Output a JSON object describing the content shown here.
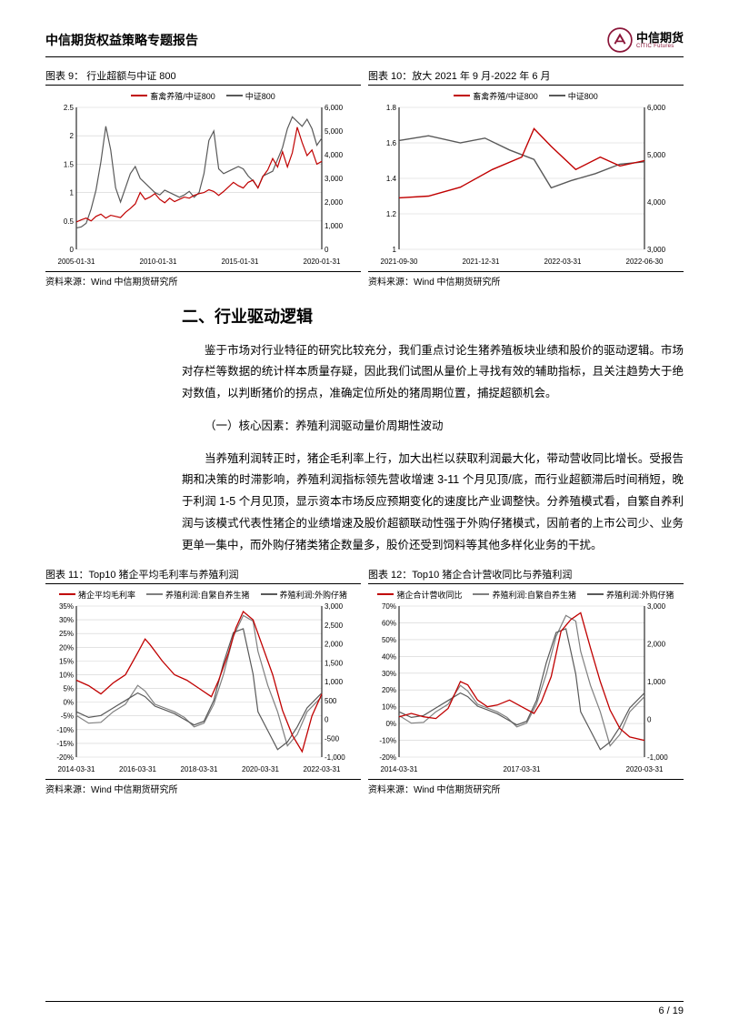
{
  "header": {
    "title": "中信期货权益策略专题报告",
    "logo_cn": "中信期货",
    "logo_en": "CITIC Futures",
    "logo_mark_color": "#8a1538"
  },
  "chart9": {
    "title": "图表 9：  行业超额与中证 800",
    "source": "资料来源：Wind   中信期货研究所",
    "legend": [
      {
        "label": "畜禽养殖/中证800",
        "color": "#c00000"
      },
      {
        "label": "中证800",
        "color": "#595959"
      }
    ],
    "type": "line",
    "background_color": "#ffffff",
    "grid_color": "#d0d0d0",
    "x_labels": [
      "2005-01-31",
      "2010-01-31",
      "2015-01-31",
      "2020-01-31"
    ],
    "y_left": {
      "min": 0,
      "max": 2.5,
      "step": 0.5
    },
    "y_right": {
      "min": 0,
      "max": 6000,
      "step": 1000
    },
    "series_left": {
      "color": "#c00000",
      "line_width": 1.2,
      "points": [
        [
          0,
          0.48
        ],
        [
          2,
          0.52
        ],
        [
          4,
          0.55
        ],
        [
          6,
          0.5
        ],
        [
          8,
          0.58
        ],
        [
          10,
          0.62
        ],
        [
          12,
          0.55
        ],
        [
          14,
          0.6
        ],
        [
          16,
          0.58
        ],
        [
          18,
          0.56
        ],
        [
          20,
          0.65
        ],
        [
          22,
          0.72
        ],
        [
          24,
          0.8
        ],
        [
          26,
          1.0
        ],
        [
          28,
          0.88
        ],
        [
          30,
          0.92
        ],
        [
          32,
          0.98
        ],
        [
          34,
          0.88
        ],
        [
          36,
          0.82
        ],
        [
          38,
          0.9
        ],
        [
          40,
          0.84
        ],
        [
          42,
          0.88
        ],
        [
          44,
          0.92
        ],
        [
          46,
          0.9
        ],
        [
          48,
          0.95
        ],
        [
          50,
          0.98
        ],
        [
          52,
          1.0
        ],
        [
          54,
          1.05
        ],
        [
          56,
          1.02
        ],
        [
          58,
          0.95
        ],
        [
          60,
          1.02
        ],
        [
          62,
          1.1
        ],
        [
          64,
          1.18
        ],
        [
          66,
          1.12
        ],
        [
          68,
          1.08
        ],
        [
          70,
          1.18
        ],
        [
          72,
          1.22
        ],
        [
          74,
          1.08
        ],
        [
          76,
          1.28
        ],
        [
          78,
          1.4
        ],
        [
          80,
          1.6
        ],
        [
          82,
          1.45
        ],
        [
          84,
          1.72
        ],
        [
          86,
          1.45
        ],
        [
          88,
          1.7
        ],
        [
          90,
          2.15
        ],
        [
          92,
          1.88
        ],
        [
          94,
          1.65
        ],
        [
          96,
          1.75
        ],
        [
          98,
          1.5
        ],
        [
          100,
          1.55
        ]
      ]
    },
    "series_right": {
      "color": "#595959",
      "line_width": 1.2,
      "points": [
        [
          0,
          900
        ],
        [
          2,
          950
        ],
        [
          4,
          1100
        ],
        [
          6,
          1700
        ],
        [
          8,
          2500
        ],
        [
          10,
          3700
        ],
        [
          12,
          5200
        ],
        [
          14,
          4200
        ],
        [
          16,
          2600
        ],
        [
          18,
          2000
        ],
        [
          20,
          2600
        ],
        [
          22,
          3200
        ],
        [
          24,
          3500
        ],
        [
          26,
          3000
        ],
        [
          28,
          2800
        ],
        [
          30,
          2600
        ],
        [
          32,
          2400
        ],
        [
          34,
          2300
        ],
        [
          36,
          2500
        ],
        [
          38,
          2400
        ],
        [
          40,
          2300
        ],
        [
          42,
          2200
        ],
        [
          44,
          2300
        ],
        [
          46,
          2450
        ],
        [
          48,
          2200
        ],
        [
          50,
          2400
        ],
        [
          52,
          3200
        ],
        [
          54,
          4600
        ],
        [
          56,
          5000
        ],
        [
          58,
          3400
        ],
        [
          60,
          3200
        ],
        [
          62,
          3300
        ],
        [
          64,
          3400
        ],
        [
          66,
          3500
        ],
        [
          68,
          3400
        ],
        [
          70,
          3100
        ],
        [
          72,
          2900
        ],
        [
          74,
          2600
        ],
        [
          76,
          3100
        ],
        [
          78,
          3200
        ],
        [
          80,
          3300
        ],
        [
          82,
          3800
        ],
        [
          84,
          4300
        ],
        [
          86,
          5100
        ],
        [
          88,
          5600
        ],
        [
          90,
          5400
        ],
        [
          92,
          5200
        ],
        [
          94,
          5500
        ],
        [
          96,
          5100
        ],
        [
          98,
          4400
        ],
        [
          100,
          4700
        ]
      ]
    }
  },
  "chart10": {
    "title": "图表 10：放大 2021 年 9 月-2022 年 6 月",
    "source": "资料来源：Wind   中信期货研究所",
    "legend": [
      {
        "label": "畜禽养殖/中证800",
        "color": "#c00000"
      },
      {
        "label": "中证800",
        "color": "#595959"
      }
    ],
    "type": "line",
    "background_color": "#ffffff",
    "grid_color": "#d0d0d0",
    "x_labels": [
      "2021-09-30",
      "2021-12-31",
      "2022-03-31",
      "2022-06-30"
    ],
    "y_left": {
      "min": 1.0,
      "max": 1.8,
      "step": 0.2
    },
    "y_right": {
      "min": 3000,
      "max": 6000,
      "step": 1000
    },
    "series_left": {
      "color": "#c00000",
      "line_width": 1.4,
      "points": [
        [
          0,
          1.29
        ],
        [
          12,
          1.3
        ],
        [
          25,
          1.35
        ],
        [
          38,
          1.45
        ],
        [
          50,
          1.52
        ],
        [
          55,
          1.68
        ],
        [
          62,
          1.58
        ],
        [
          72,
          1.45
        ],
        [
          82,
          1.52
        ],
        [
          90,
          1.47
        ],
        [
          100,
          1.5
        ]
      ]
    },
    "series_right": {
      "color": "#595959",
      "line_width": 1.4,
      "points": [
        [
          0,
          5300
        ],
        [
          12,
          5400
        ],
        [
          25,
          5250
        ],
        [
          35,
          5350
        ],
        [
          45,
          5100
        ],
        [
          55,
          4900
        ],
        [
          62,
          4300
        ],
        [
          70,
          4450
        ],
        [
          80,
          4600
        ],
        [
          90,
          4800
        ],
        [
          100,
          4850
        ]
      ]
    }
  },
  "section": {
    "heading": "二、行业驱动逻辑",
    "para1": "鉴于市场对行业特征的研究比较充分，我们重点讨论生猪养殖板块业绩和股价的驱动逻辑。市场对存栏等数据的统计样本质量存疑，因此我们试图从量价上寻找有效的辅助指标，且关注趋势大于绝对数值，以判断猪价的拐点，准确定位所处的猪周期位置，捕捉超额机会。",
    "sub_heading": "（一）核心因素：养殖利润驱动量价周期性波动",
    "para2": "当养殖利润转正时，猪企毛利率上行，加大出栏以获取利润最大化，带动营收同比增长。受报告期和决策的时滞影响，养殖利润指标领先营收增速 3-11 个月见顶/底，而行业超额滞后时间稍短，晚于利润 1-5 个月见顶，显示资本市场反应预期变化的速度比产业调整快。分养殖模式看，自繁自养利润与该模式代表性猪企的业绩增速及股价超额联动性强于外购仔猪模式，因前者的上市公司少、业务更单一集中，而外购仔猪类猪企数量多，股价还受到饲料等其他多样化业务的干扰。"
  },
  "chart11": {
    "title": "图表 11：Top10 猪企平均毛利率与养殖利润",
    "source": "资料来源：Wind   中信期货研究所",
    "legend": [
      {
        "label": "猪企平均毛利率",
        "color": "#c00000"
      },
      {
        "label": "养殖利润:自繁自养生猪",
        "color": "#7f7f7f"
      },
      {
        "label": "养殖利润:外购仔猪",
        "color": "#595959"
      }
    ],
    "type": "line",
    "background_color": "#ffffff",
    "grid_color": "#d0d0d0",
    "x_labels": [
      "2014-03-31",
      "2016-03-31",
      "2018-03-31",
      "2020-03-31",
      "2022-03-31"
    ],
    "y_left": {
      "min": -20,
      "max": 35,
      "step": 5,
      "suffix": "%"
    },
    "y_right": {
      "min": -1000,
      "max": 3000,
      "step": 500
    },
    "series_left_red": {
      "color": "#c00000",
      "line_width": 1.3,
      "points": [
        [
          0,
          8
        ],
        [
          5,
          6
        ],
        [
          10,
          3
        ],
        [
          15,
          7
        ],
        [
          20,
          10
        ],
        [
          25,
          18
        ],
        [
          28,
          23
        ],
        [
          30,
          21
        ],
        [
          35,
          15
        ],
        [
          40,
          10
        ],
        [
          45,
          8
        ],
        [
          50,
          5
        ],
        [
          55,
          2
        ],
        [
          58,
          8
        ],
        [
          62,
          18
        ],
        [
          65,
          27
        ],
        [
          68,
          33
        ],
        [
          72,
          30
        ],
        [
          76,
          20
        ],
        [
          80,
          10
        ],
        [
          84,
          -3
        ],
        [
          88,
          -12
        ],
        [
          92,
          -18
        ],
        [
          96,
          -5
        ],
        [
          100,
          3
        ]
      ]
    },
    "series_right_grey": {
      "color": "#7f7f7f",
      "line_width": 1.2,
      "points": [
        [
          0,
          100
        ],
        [
          5,
          -100
        ],
        [
          10,
          -80
        ],
        [
          15,
          200
        ],
        [
          20,
          400
        ],
        [
          25,
          900
        ],
        [
          28,
          750
        ],
        [
          32,
          400
        ],
        [
          36,
          300
        ],
        [
          40,
          200
        ],
        [
          44,
          50
        ],
        [
          48,
          -200
        ],
        [
          52,
          -100
        ],
        [
          56,
          400
        ],
        [
          60,
          1200
        ],
        [
          64,
          2200
        ],
        [
          68,
          2750
        ],
        [
          72,
          2600
        ],
        [
          74,
          1800
        ],
        [
          78,
          900
        ],
        [
          82,
          200
        ],
        [
          86,
          -700
        ],
        [
          90,
          -400
        ],
        [
          94,
          200
        ],
        [
          100,
          600
        ]
      ]
    },
    "series_right_dark": {
      "color": "#595959",
      "line_width": 1.2,
      "points": [
        [
          0,
          200
        ],
        [
          5,
          50
        ],
        [
          10,
          100
        ],
        [
          15,
          300
        ],
        [
          20,
          500
        ],
        [
          25,
          700
        ],
        [
          28,
          600
        ],
        [
          32,
          350
        ],
        [
          36,
          250
        ],
        [
          40,
          150
        ],
        [
          44,
          0
        ],
        [
          48,
          -150
        ],
        [
          52,
          -50
        ],
        [
          56,
          500
        ],
        [
          60,
          1500
        ],
        [
          64,
          2300
        ],
        [
          68,
          2400
        ],
        [
          72,
          1200
        ],
        [
          74,
          200
        ],
        [
          78,
          -300
        ],
        [
          82,
          -800
        ],
        [
          86,
          -600
        ],
        [
          90,
          -200
        ],
        [
          94,
          300
        ],
        [
          100,
          700
        ]
      ]
    }
  },
  "chart12": {
    "title": "图表 12：Top10 猪企合计营收同比与养殖利润",
    "source": "资料来源：Wind   中信期货研究所",
    "legend": [
      {
        "label": "猪企合计营收同比",
        "color": "#c00000"
      },
      {
        "label": "养殖利润:自繁自养生猪",
        "color": "#7f7f7f"
      },
      {
        "label": "养殖利润:外购仔猪",
        "color": "#595959"
      }
    ],
    "type": "line",
    "background_color": "#ffffff",
    "grid_color": "#d0d0d0",
    "x_labels": [
      "2014-03-31",
      "2017-03-31",
      "2020-03-31"
    ],
    "y_left": {
      "min": -20,
      "max": 70,
      "step": 10,
      "suffix": "%"
    },
    "y_right": {
      "min": -1000,
      "max": 3000,
      "step": 1000
    },
    "series_left_red": {
      "color": "#c00000",
      "line_width": 1.3,
      "points": [
        [
          0,
          4
        ],
        [
          5,
          6
        ],
        [
          10,
          4
        ],
        [
          15,
          3
        ],
        [
          20,
          9
        ],
        [
          25,
          25
        ],
        [
          28,
          23
        ],
        [
          32,
          14
        ],
        [
          36,
          10
        ],
        [
          40,
          11
        ],
        [
          45,
          14
        ],
        [
          50,
          10
        ],
        [
          55,
          6
        ],
        [
          58,
          13
        ],
        [
          62,
          28
        ],
        [
          66,
          55
        ],
        [
          70,
          62
        ],
        [
          74,
          66
        ],
        [
          78,
          45
        ],
        [
          82,
          25
        ],
        [
          86,
          8
        ],
        [
          90,
          -3
        ],
        [
          94,
          -8
        ],
        [
          100,
          -10
        ]
      ]
    },
    "series_right_grey": {
      "color": "#7f7f7f",
      "line_width": 1.2,
      "points": [
        [
          0,
          100
        ],
        [
          5,
          -100
        ],
        [
          10,
          -80
        ],
        [
          15,
          200
        ],
        [
          20,
          400
        ],
        [
          25,
          900
        ],
        [
          28,
          750
        ],
        [
          32,
          400
        ],
        [
          36,
          300
        ],
        [
          40,
          200
        ],
        [
          44,
          50
        ],
        [
          48,
          -200
        ],
        [
          52,
          -100
        ],
        [
          56,
          400
        ],
        [
          60,
          1200
        ],
        [
          64,
          2200
        ],
        [
          68,
          2750
        ],
        [
          72,
          2600
        ],
        [
          74,
          1800
        ],
        [
          78,
          900
        ],
        [
          82,
          200
        ],
        [
          86,
          -700
        ],
        [
          90,
          -400
        ],
        [
          94,
          200
        ],
        [
          100,
          600
        ]
      ]
    },
    "series_right_dark": {
      "color": "#595959",
      "line_width": 1.2,
      "points": [
        [
          0,
          200
        ],
        [
          5,
          50
        ],
        [
          10,
          100
        ],
        [
          15,
          300
        ],
        [
          20,
          500
        ],
        [
          25,
          700
        ],
        [
          28,
          600
        ],
        [
          32,
          350
        ],
        [
          36,
          250
        ],
        [
          40,
          150
        ],
        [
          44,
          0
        ],
        [
          48,
          -150
        ],
        [
          52,
          -50
        ],
        [
          56,
          500
        ],
        [
          60,
          1500
        ],
        [
          64,
          2300
        ],
        [
          68,
          2400
        ],
        [
          72,
          1200
        ],
        [
          74,
          200
        ],
        [
          78,
          -300
        ],
        [
          82,
          -800
        ],
        [
          86,
          -600
        ],
        [
          90,
          -200
        ],
        [
          94,
          300
        ],
        [
          100,
          700
        ]
      ]
    }
  },
  "footer": {
    "page": "6",
    "total": "19",
    "sep": " / "
  }
}
